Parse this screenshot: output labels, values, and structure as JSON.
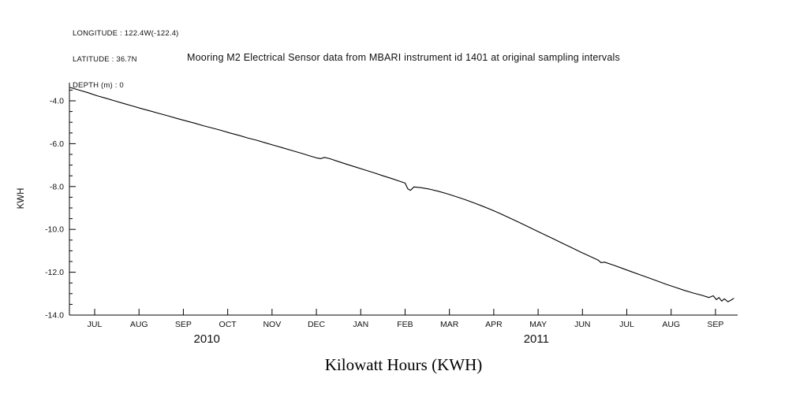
{
  "header": {
    "longitude": "LONGITUDE : 122.4W(-122.4)",
    "latitude": "LATITUDE : 36.7N",
    "depth": "DEPTH (m) : 0"
  },
  "title": "Mooring M2 Electrical Sensor data from MBARI instrument id 1401 at original sampling intervals",
  "bottom_title": "Kilowatt Hours (KWH)",
  "chart_data": {
    "type": "line",
    "title": "Mooring M2 Electrical Sensor data from MBARI instrument id 1401 at original sampling intervals",
    "xlabel": "Kilowatt Hours (KWH)",
    "ylabel": "KWH",
    "line_color": "#000000",
    "axis_color": "#000000",
    "grid": false,
    "legend": "none",
    "ylim": [
      -14.0,
      -3.15
    ],
    "y_ticks": [
      -4.0,
      -6.0,
      -8.0,
      -10.0,
      -12.0,
      -14.0
    ],
    "y_tick_labels": [
      "-4.0",
      "-6.0",
      "-8.0",
      "-10.0",
      "-12.0",
      "-14.0"
    ],
    "x_tick_labels": [
      "JUL",
      "AUG",
      "SEP",
      "OCT",
      "NOV",
      "DEC",
      "JAN",
      "FEB",
      "MAR",
      "APR",
      "MAY",
      "JUN",
      "JUL",
      "AUG",
      "SEP"
    ],
    "year_labels": [
      {
        "label": "2010",
        "t": 2.53
      },
      {
        "label": "2011",
        "t": 9.96
      }
    ],
    "x_range_months": [
      -0.55,
      14.5
    ],
    "series": [
      {
        "name": "KWH",
        "points": [
          [
            -0.55,
            -3.38
          ],
          [
            -0.35,
            -3.5
          ],
          [
            -0.15,
            -3.62
          ],
          [
            0.05,
            -3.76
          ],
          [
            0.25,
            -3.88
          ],
          [
            0.45,
            -4.0
          ],
          [
            0.65,
            -4.12
          ],
          [
            0.85,
            -4.24
          ],
          [
            1.05,
            -4.36
          ],
          [
            1.25,
            -4.47
          ],
          [
            1.45,
            -4.59
          ],
          [
            1.65,
            -4.7
          ],
          [
            1.85,
            -4.82
          ],
          [
            2.05,
            -4.93
          ],
          [
            2.25,
            -5.04
          ],
          [
            2.45,
            -5.16
          ],
          [
            2.65,
            -5.27
          ],
          [
            2.85,
            -5.38
          ],
          [
            3.05,
            -5.5
          ],
          [
            3.25,
            -5.61
          ],
          [
            3.45,
            -5.73
          ],
          [
            3.65,
            -5.84
          ],
          [
            3.85,
            -5.96
          ],
          [
            4.05,
            -6.08
          ],
          [
            4.25,
            -6.2
          ],
          [
            4.45,
            -6.32
          ],
          [
            4.65,
            -6.44
          ],
          [
            4.85,
            -6.57
          ],
          [
            5.0,
            -6.66
          ],
          [
            5.1,
            -6.7
          ],
          [
            5.18,
            -6.64
          ],
          [
            5.3,
            -6.7
          ],
          [
            5.5,
            -6.84
          ],
          [
            5.7,
            -6.97
          ],
          [
            5.9,
            -7.1
          ],
          [
            6.1,
            -7.23
          ],
          [
            6.3,
            -7.36
          ],
          [
            6.5,
            -7.5
          ],
          [
            6.7,
            -7.63
          ],
          [
            6.9,
            -7.77
          ],
          [
            7.0,
            -7.84
          ],
          [
            7.06,
            -8.1
          ],
          [
            7.12,
            -8.18
          ],
          [
            7.2,
            -8.02
          ],
          [
            7.35,
            -8.05
          ],
          [
            7.55,
            -8.12
          ],
          [
            7.75,
            -8.22
          ],
          [
            7.95,
            -8.34
          ],
          [
            8.15,
            -8.47
          ],
          [
            8.35,
            -8.61
          ],
          [
            8.55,
            -8.76
          ],
          [
            8.75,
            -8.92
          ],
          [
            8.95,
            -9.09
          ],
          [
            9.15,
            -9.27
          ],
          [
            9.35,
            -9.46
          ],
          [
            9.55,
            -9.65
          ],
          [
            9.75,
            -9.85
          ],
          [
            9.95,
            -10.05
          ],
          [
            10.15,
            -10.25
          ],
          [
            10.35,
            -10.45
          ],
          [
            10.55,
            -10.65
          ],
          [
            10.75,
            -10.85
          ],
          [
            10.95,
            -11.05
          ],
          [
            11.15,
            -11.24
          ],
          [
            11.35,
            -11.43
          ],
          [
            11.42,
            -11.55
          ],
          [
            11.5,
            -11.53
          ],
          [
            11.7,
            -11.67
          ],
          [
            11.9,
            -11.82
          ],
          [
            12.1,
            -11.97
          ],
          [
            12.3,
            -12.12
          ],
          [
            12.5,
            -12.27
          ],
          [
            12.7,
            -12.42
          ],
          [
            12.9,
            -12.57
          ],
          [
            13.1,
            -12.71
          ],
          [
            13.3,
            -12.85
          ],
          [
            13.5,
            -12.97
          ],
          [
            13.7,
            -13.08
          ],
          [
            13.85,
            -13.18
          ],
          [
            13.95,
            -13.1
          ],
          [
            14.02,
            -13.28
          ],
          [
            14.08,
            -13.18
          ],
          [
            14.14,
            -13.35
          ],
          [
            14.2,
            -13.24
          ],
          [
            14.28,
            -13.38
          ],
          [
            14.35,
            -13.3
          ],
          [
            14.41,
            -13.22
          ]
        ]
      }
    ]
  }
}
